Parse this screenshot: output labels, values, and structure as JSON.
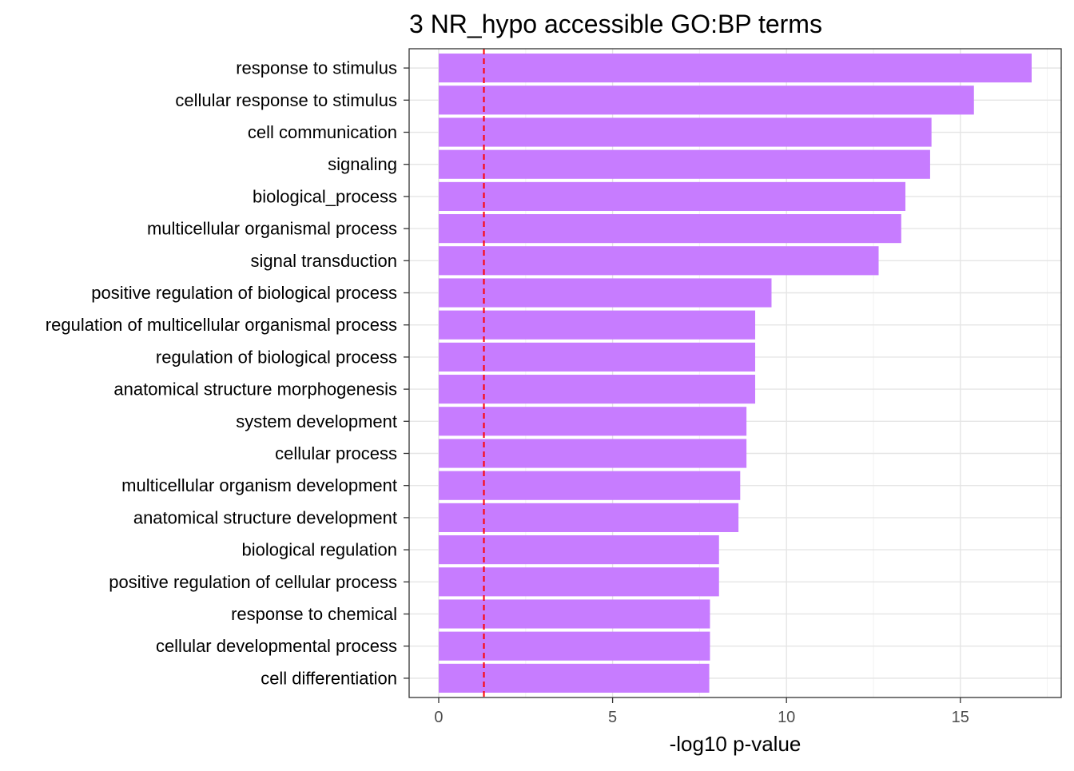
{
  "chart_data": {
    "type": "bar",
    "orientation": "horizontal",
    "title": "3 NR_hypo accessible GO:BP terms",
    "xlabel": "-log10 p-value",
    "ylabel": "",
    "categories": [
      "response to stimulus",
      "cellular response to stimulus",
      "cell communication",
      "signaling",
      "biological_process",
      "multicellular organismal process",
      "signal transduction",
      "positive regulation of biological process",
      "regulation of multicellular organismal process",
      "regulation of biological process",
      "anatomical structure morphogenesis",
      "system development",
      "cellular process",
      "multicellular organism development",
      "anatomical structure development",
      "biological regulation",
      "positive regulation of cellular process",
      "response to chemical",
      "cellular developmental process",
      "cell differentiation"
    ],
    "values": [
      17.05,
      15.39,
      14.17,
      14.13,
      13.42,
      13.3,
      12.65,
      9.57,
      9.1,
      9.1,
      9.1,
      8.85,
      8.85,
      8.67,
      8.62,
      8.06,
      8.06,
      7.8,
      7.8,
      7.78
    ],
    "xlim": [
      -0.85,
      17.9
    ],
    "xticks": [
      0,
      5,
      10,
      15
    ],
    "threshold_line": 1.3,
    "grid": true,
    "bar_color": "#C77CFF",
    "threshold_color": "#FF0000"
  }
}
